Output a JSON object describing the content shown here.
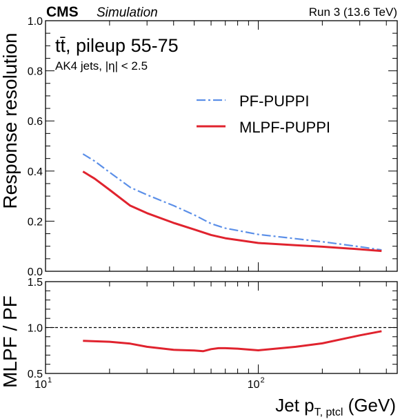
{
  "header": {
    "experiment": "CMS",
    "qualifier": "Simulation",
    "run_label": "Run 3 (13.6 TeV)"
  },
  "annotations": {
    "process": "tt̄, pileup 55-75",
    "selection": "AK4 jets, |η| < 2.5"
  },
  "colors": {
    "pf_puppi": "#5b8fe8",
    "mlpf_puppi": "#e0232e"
  },
  "chart_data": [
    {
      "type": "line",
      "xlabel": "",
      "ylabel": "Response resolution",
      "x_scale": "log",
      "xlim": [
        10,
        450
      ],
      "ylim": [
        0.0,
        1.0
      ],
      "yticks": [
        "0.0",
        "0.2",
        "0.4",
        "0.6",
        "0.8",
        "1.0"
      ],
      "legend_position": "top-right",
      "series": [
        {
          "name": "PF-PUPPI",
          "style": "dash-dot",
          "x": [
            15,
            17,
            20,
            25,
            30,
            40,
            50,
            60,
            70,
            100,
            150,
            200,
            300,
            380
          ],
          "y": [
            0.468,
            0.44,
            0.395,
            0.335,
            0.305,
            0.262,
            0.225,
            0.19,
            0.172,
            0.147,
            0.13,
            0.118,
            0.098,
            0.085
          ]
        },
        {
          "name": "MLPF-PUPPI",
          "style": "solid",
          "x": [
            15,
            17,
            20,
            25,
            30,
            40,
            50,
            60,
            70,
            100,
            150,
            200,
            300,
            380
          ],
          "y": [
            0.398,
            0.37,
            0.325,
            0.262,
            0.232,
            0.193,
            0.167,
            0.145,
            0.132,
            0.113,
            0.104,
            0.098,
            0.088,
            0.081
          ]
        }
      ]
    },
    {
      "type": "line",
      "xlabel": "Jet p",
      "xlabel_subscript": "T, ptcl",
      "xlabel_unit": "(GeV)",
      "ylabel": "MLPF / PF",
      "x_scale": "log",
      "xlim": [
        10,
        450
      ],
      "xticks": [
        {
          "value": 10,
          "base": "10",
          "exp": "1"
        },
        {
          "value": 100,
          "base": "10",
          "exp": "2"
        }
      ],
      "ylim": [
        0.5,
        1.5
      ],
      "yticks": [
        "0.5",
        "1.0",
        "1.5"
      ],
      "reference_line": 1.0,
      "series": [
        {
          "style": "solid",
          "x": [
            15,
            20,
            25,
            30,
            40,
            50,
            55,
            60,
            65,
            70,
            80,
            100,
            150,
            200,
            300,
            380
          ],
          "y": [
            0.855,
            0.845,
            0.825,
            0.79,
            0.757,
            0.75,
            0.742,
            0.765,
            0.775,
            0.775,
            0.77,
            0.752,
            0.79,
            0.828,
            0.915,
            0.96
          ]
        }
      ]
    }
  ]
}
